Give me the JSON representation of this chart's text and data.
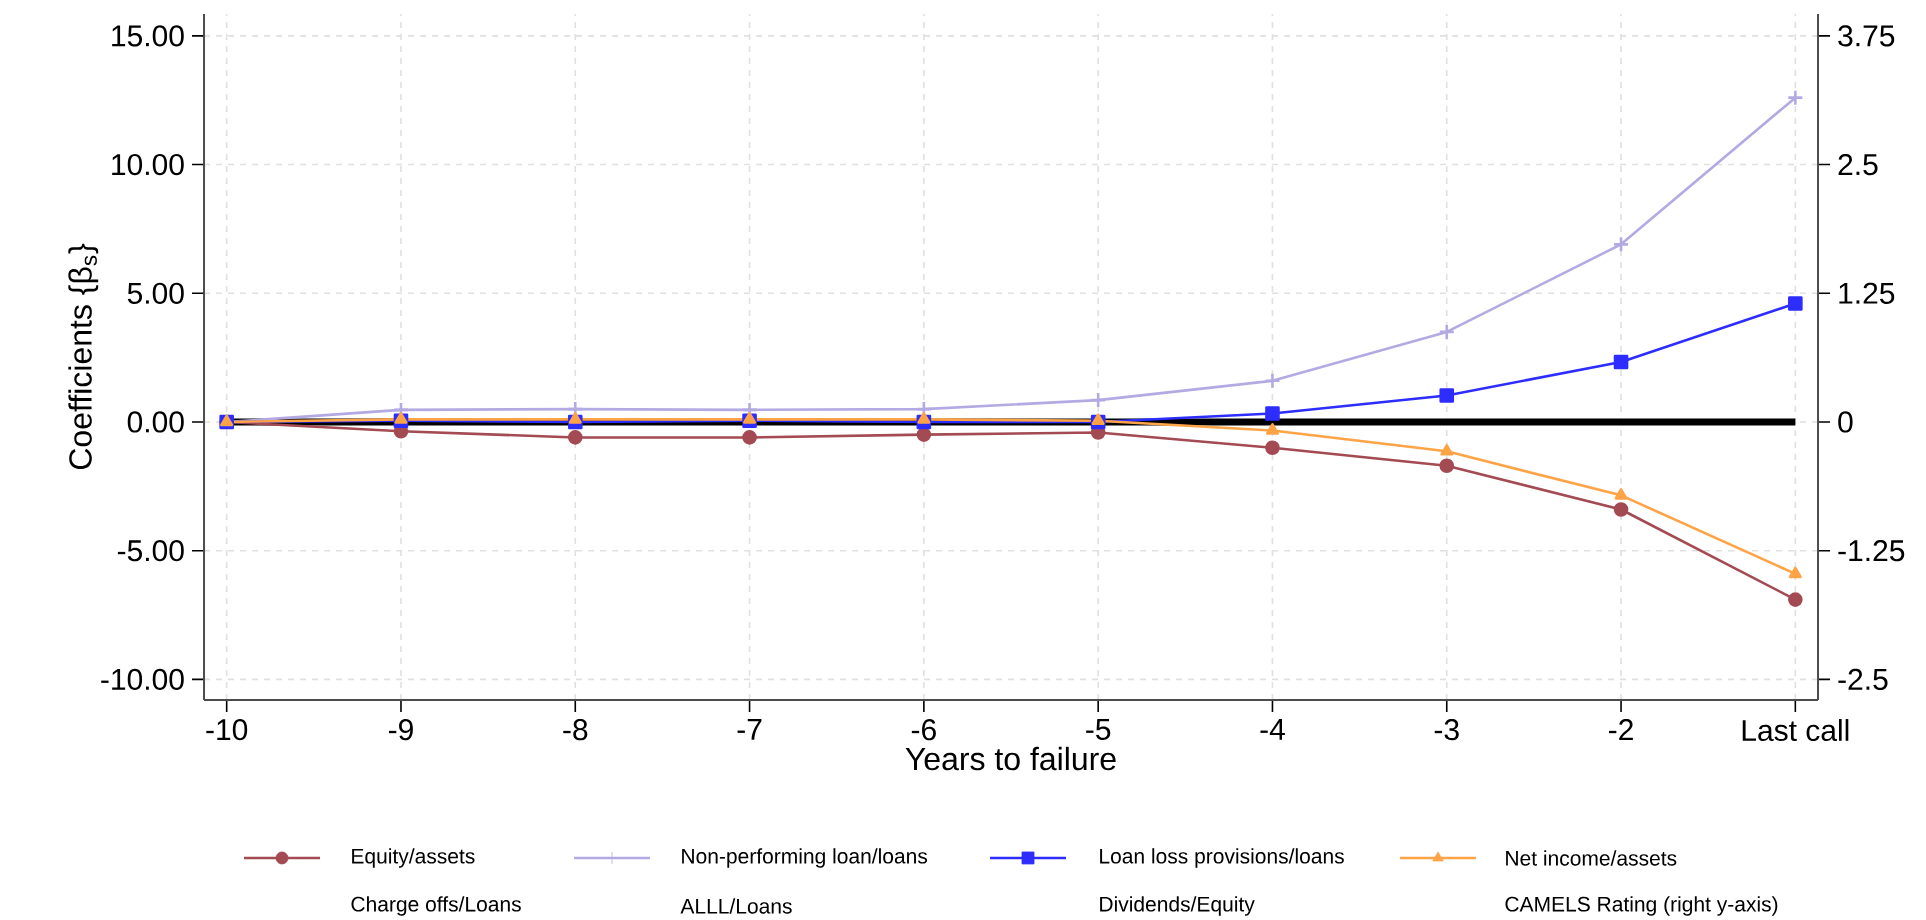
{
  "chart_data": {
    "type": "line",
    "xlabel": "Years to failure",
    "ylabel": "Coefficients {β$_{s}$}",
    "categories": [
      "-10",
      "-9",
      "-8",
      "-7",
      "-6",
      "-5",
      "-4",
      "-3",
      "-2",
      "Last call"
    ],
    "series": [
      {
        "name": "Equity/assets",
        "color": "#a34a52",
        "marker": "circle",
        "values": [
          0,
          -0.36,
          -0.6,
          -0.6,
          -0.49,
          -0.41,
          -1.0,
          -1.7,
          -3.4,
          -6.9
        ]
      },
      {
        "name": "Non-performing loan/loans",
        "color": "#b3aae3",
        "marker": "cross",
        "values": [
          0,
          0.47,
          0.5,
          0.47,
          0.5,
          0.85,
          1.6,
          3.5,
          6.9,
          12.6
        ]
      },
      {
        "name": "Loan loss provisions/loans",
        "color": "#2d2dff",
        "marker": "square",
        "values": [
          0,
          0.05,
          0,
          0.05,
          0,
          0,
          0.33,
          1.03,
          2.33,
          4.6
        ]
      },
      {
        "name": "Net income/assets",
        "color": "#ffa347",
        "marker": "triangle",
        "values": [
          0,
          0.1,
          0.1,
          0.1,
          0.1,
          0.05,
          -0.33,
          -1.14,
          -2.85,
          -5.9
        ]
      }
    ],
    "annotations": [
      "Charge offs/Loans",
      "ALLL/Loans",
      "Dividends/Equity",
      "CAMELS Rating (right y-axis)"
    ],
    "ylim": [
      -10.8,
      15.85
    ],
    "yticks": [
      {
        "value": -10,
        "label": "-10.00"
      },
      {
        "value": -5,
        "label": "-5.00"
      },
      {
        "value": 0,
        "label": "0.00"
      },
      {
        "value": 5,
        "label": "5.00"
      },
      {
        "value": 10,
        "label": "10.00"
      },
      {
        "value": 15,
        "label": "15.00"
      }
    ],
    "y2lim": [
      -2.7,
      3.9625
    ],
    "y2ticks": [
      -2.5,
      -1.25,
      0,
      1.25,
      2.5,
      3.75
    ],
    "ref_lines": [
      {
        "axis": "y",
        "value": 0,
        "color": "#000000"
      }
    ],
    "grid": true,
    "legend": "bottom",
    "line_style": "solid"
  }
}
